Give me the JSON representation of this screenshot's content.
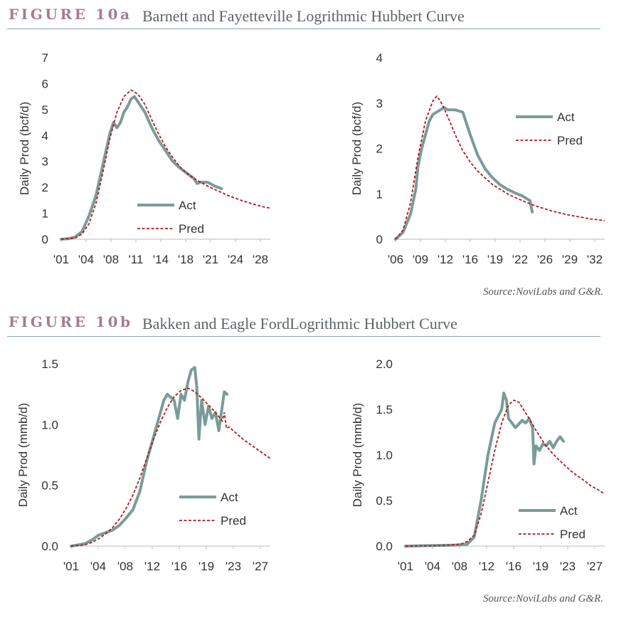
{
  "figures": [
    {
      "label": "FIGURE 10a",
      "title": "Barnett and Fayetteville Logrithmic Hubbert Curve",
      "source": "Source:NoviLabs and G&R."
    },
    {
      "label": "FIGURE 10b",
      "title": "Bakken and Eagle FordLogrithmic Hubbert Curve",
      "source": "Source:NoviLabs and G&R."
    }
  ],
  "colors": {
    "label": "#a37d93",
    "act": "#7a9c98",
    "pred": "#b11b1b",
    "rule": "#8aa6a8",
    "axis": "#bbbbbb",
    "text": "#333333"
  },
  "chart_data": [
    {
      "type": "line",
      "ylabel": "Daily Prod (bcf/d)",
      "ylim": [
        0,
        7
      ],
      "yticks": [
        "0",
        "1",
        "2",
        "3",
        "4",
        "5",
        "6",
        "7"
      ],
      "xlim": [
        2001,
        2031
      ],
      "xticks": [
        "'01",
        "'04",
        "'08",
        "'11",
        "'14",
        "'18",
        "'21",
        "'24",
        "'28"
      ],
      "legend_position": "center-right",
      "series": [
        {
          "name": "Act",
          "style": "solid",
          "points": [
            [
              2001,
              0
            ],
            [
              2002,
              0.02
            ],
            [
              2003,
              0.08
            ],
            [
              2004,
              0.3
            ],
            [
              2005,
              0.9
            ],
            [
              2006,
              1.7
            ],
            [
              2007,
              2.9
            ],
            [
              2008,
              4.1
            ],
            [
              2008.5,
              4.5
            ],
            [
              2009,
              4.3
            ],
            [
              2009.5,
              4.5
            ],
            [
              2010,
              4.9
            ],
            [
              2010.5,
              5.1
            ],
            [
              2011,
              5.4
            ],
            [
              2011.5,
              5.5
            ],
            [
              2012,
              5.3
            ],
            [
              2013,
              4.9
            ],
            [
              2014,
              4.3
            ],
            [
              2015,
              3.8
            ],
            [
              2016,
              3.4
            ],
            [
              2017,
              3.0
            ],
            [
              2018,
              2.75
            ],
            [
              2019,
              2.55
            ],
            [
              2020,
              2.35
            ],
            [
              2020.5,
              2.15
            ],
            [
              2021,
              2.2
            ],
            [
              2022,
              2.2
            ],
            [
              2023,
              2.05
            ],
            [
              2024,
              1.95
            ]
          ]
        },
        {
          "name": "Pred",
          "style": "dashed",
          "points": [
            [
              2001,
              0
            ],
            [
              2003,
              0.05
            ],
            [
              2004,
              0.2
            ],
            [
              2005,
              0.6
            ],
            [
              2006,
              1.4
            ],
            [
              2007,
              2.6
            ],
            [
              2008,
              3.9
            ],
            [
              2009,
              4.9
            ],
            [
              2010,
              5.5
            ],
            [
              2011,
              5.75
            ],
            [
              2012,
              5.6
            ],
            [
              2013,
              5.2
            ],
            [
              2014,
              4.6
            ],
            [
              2015,
              4.05
            ],
            [
              2016,
              3.55
            ],
            [
              2017,
              3.15
            ],
            [
              2018,
              2.8
            ],
            [
              2019,
              2.55
            ],
            [
              2020,
              2.35
            ],
            [
              2021,
              2.2
            ],
            [
              2022,
              2.05
            ],
            [
              2023,
              1.92
            ],
            [
              2024,
              1.8
            ],
            [
              2025,
              1.68
            ],
            [
              2026,
              1.58
            ],
            [
              2027,
              1.48
            ],
            [
              2028,
              1.4
            ],
            [
              2029,
              1.32
            ],
            [
              2030,
              1.25
            ],
            [
              2031,
              1.2
            ]
          ]
        }
      ]
    },
    {
      "type": "line",
      "ylabel": "Daily Prod (bcf/d)",
      "ylim": [
        0,
        4
      ],
      "yticks": [
        "0",
        "1",
        "2",
        "3",
        "4"
      ],
      "xlim": [
        2006,
        2034
      ],
      "xticks": [
        "'06",
        "'09",
        "'12",
        "'16",
        "'19",
        "'22",
        "'26",
        "'29",
        "'32"
      ],
      "legend_position": "top-right",
      "series": [
        {
          "name": "Act",
          "style": "solid",
          "points": [
            [
              2006,
              0
            ],
            [
              2007,
              0.15
            ],
            [
              2008,
              0.55
            ],
            [
              2008.7,
              1.1
            ],
            [
              2009,
              1.6
            ],
            [
              2009.5,
              2.0
            ],
            [
              2010,
              2.3
            ],
            [
              2010.5,
              2.6
            ],
            [
              2011,
              2.75
            ],
            [
              2012,
              2.85
            ],
            [
              2012.5,
              2.9
            ],
            [
              2013,
              2.85
            ],
            [
              2014,
              2.85
            ],
            [
              2015,
              2.8
            ],
            [
              2016,
              2.3
            ],
            [
              2017,
              1.85
            ],
            [
              2018,
              1.55
            ],
            [
              2019,
              1.35
            ],
            [
              2020,
              1.2
            ],
            [
              2021,
              1.1
            ],
            [
              2022,
              1.02
            ],
            [
              2023,
              0.95
            ],
            [
              2024,
              0.85
            ],
            [
              2024.3,
              0.6
            ]
          ]
        },
        {
          "name": "Pred",
          "style": "dashed",
          "points": [
            [
              2006,
              0
            ],
            [
              2007,
              0.2
            ],
            [
              2008,
              0.8
            ],
            [
              2009,
              1.8
            ],
            [
              2010,
              2.6
            ],
            [
              2011,
              3.05
            ],
            [
              2011.5,
              3.15
            ],
            [
              2012,
              3.05
            ],
            [
              2013,
              2.7
            ],
            [
              2014,
              2.3
            ],
            [
              2015,
              1.95
            ],
            [
              2016,
              1.7
            ],
            [
              2017,
              1.5
            ],
            [
              2018,
              1.35
            ],
            [
              2019,
              1.2
            ],
            [
              2020,
              1.1
            ],
            [
              2021,
              1.0
            ],
            [
              2022,
              0.92
            ],
            [
              2023,
              0.85
            ],
            [
              2024,
              0.78
            ],
            [
              2025,
              0.72
            ],
            [
              2026,
              0.67
            ],
            [
              2027,
              0.62
            ],
            [
              2028,
              0.58
            ],
            [
              2029,
              0.54
            ],
            [
              2030,
              0.51
            ],
            [
              2031,
              0.48
            ],
            [
              2032,
              0.45
            ],
            [
              2033,
              0.43
            ],
            [
              2034,
              0.41
            ]
          ]
        }
      ]
    },
    {
      "type": "line",
      "ylabel": "Daily Prod (mmb/d)",
      "ylim": [
        0,
        1.5
      ],
      "yticks": [
        "0.0",
        "0.5",
        "1.0",
        "1.5"
      ],
      "xlim": [
        2001,
        2030
      ],
      "xticks": [
        "'01",
        "'04",
        "'08",
        "'12",
        "'16",
        "'19",
        "'23",
        "'27"
      ],
      "legend_position": "center-right",
      "series": [
        {
          "name": "Act",
          "style": "solid",
          "points": [
            [
              2001,
              0
            ],
            [
              2002,
              0.01
            ],
            [
              2003,
              0.02
            ],
            [
              2004,
              0.05
            ],
            [
              2005,
              0.09
            ],
            [
              2006,
              0.11
            ],
            [
              2007,
              0.13
            ],
            [
              2008,
              0.17
            ],
            [
              2009,
              0.23
            ],
            [
              2010,
              0.3
            ],
            [
              2011,
              0.45
            ],
            [
              2012,
              0.7
            ],
            [
              2013,
              0.9
            ],
            [
              2014,
              1.1
            ],
            [
              2014.5,
              1.2
            ],
            [
              2015,
              1.25
            ],
            [
              2016,
              1.2
            ],
            [
              2016.5,
              1.05
            ],
            [
              2017,
              1.25
            ],
            [
              2017.5,
              1.2
            ],
            [
              2018,
              1.35
            ],
            [
              2018.5,
              1.45
            ],
            [
              2019,
              1.47
            ],
            [
              2019.3,
              1.3
            ],
            [
              2019.6,
              0.88
            ],
            [
              2020,
              1.2
            ],
            [
              2020.5,
              1.0
            ],
            [
              2021,
              1.15
            ],
            [
              2021.5,
              1.05
            ],
            [
              2022,
              1.1
            ],
            [
              2022.5,
              0.95
            ],
            [
              2023,
              1.15
            ],
            [
              2023.3,
              1.27
            ],
            [
              2023.7,
              1.25
            ]
          ]
        },
        {
          "name": "Pred",
          "style": "dashed",
          "points": [
            [
              2001,
              0
            ],
            [
              2003,
              0.01
            ],
            [
              2004,
              0.03
            ],
            [
              2005,
              0.06
            ],
            [
              2006,
              0.1
            ],
            [
              2007,
              0.15
            ],
            [
              2008,
              0.22
            ],
            [
              2009,
              0.31
            ],
            [
              2010,
              0.42
            ],
            [
              2011,
              0.56
            ],
            [
              2012,
              0.72
            ],
            [
              2013,
              0.88
            ],
            [
              2014,
              1.02
            ],
            [
              2015,
              1.14
            ],
            [
              2016,
              1.23
            ],
            [
              2017,
              1.28
            ],
            [
              2018,
              1.3
            ],
            [
              2019,
              1.27
            ],
            [
              2020,
              1.22
            ],
            [
              2021,
              1.16
            ],
            [
              2022,
              1.1
            ],
            [
              2023,
              1.03
            ],
            [
              2023.3,
              1.1
            ],
            [
              2023.6,
              0.97
            ],
            [
              2024,
              0.98
            ],
            [
              2025,
              0.93
            ],
            [
              2026,
              0.88
            ],
            [
              2027,
              0.84
            ],
            [
              2028,
              0.8
            ],
            [
              2029,
              0.76
            ],
            [
              2030,
              0.72
            ]
          ]
        }
      ]
    },
    {
      "type": "line",
      "ylabel": "Daily Prod (mmb/d)",
      "ylim": [
        0,
        2.0
      ],
      "yticks": [
        "0.0",
        "0.5",
        "1.0",
        "1.5",
        "2.0"
      ],
      "xlim": [
        2001,
        2030
      ],
      "xticks": [
        "'01",
        "'04",
        "'08",
        "'12",
        "'16",
        "'19",
        "'23",
        "'27"
      ],
      "legend_position": "bottom-right",
      "series": [
        {
          "name": "Act",
          "style": "solid",
          "points": [
            [
              2001,
              0
            ],
            [
              2004,
              0.005
            ],
            [
              2008,
              0.01
            ],
            [
              2010,
              0.02
            ],
            [
              2011,
              0.1
            ],
            [
              2012,
              0.5
            ],
            [
              2013,
              1.0
            ],
            [
              2014,
              1.35
            ],
            [
              2015,
              1.5
            ],
            [
              2015.3,
              1.68
            ],
            [
              2015.7,
              1.6
            ],
            [
              2016,
              1.4
            ],
            [
              2017,
              1.3
            ],
            [
              2018,
              1.38
            ],
            [
              2018.5,
              1.35
            ],
            [
              2019,
              1.4
            ],
            [
              2019.5,
              1.3
            ],
            [
              2019.7,
              0.9
            ],
            [
              2020,
              1.1
            ],
            [
              2020.5,
              1.05
            ],
            [
              2021,
              1.12
            ],
            [
              2021.5,
              1.1
            ],
            [
              2022,
              1.15
            ],
            [
              2022.5,
              1.08
            ],
            [
              2023,
              1.15
            ],
            [
              2023.5,
              1.2
            ],
            [
              2024,
              1.15
            ]
          ]
        },
        {
          "name": "Pred",
          "style": "dashed",
          "points": [
            [
              2001,
              0
            ],
            [
              2006,
              0.005
            ],
            [
              2009,
              0.02
            ],
            [
              2010,
              0.05
            ],
            [
              2011,
              0.12
            ],
            [
              2012,
              0.35
            ],
            [
              2013,
              0.7
            ],
            [
              2014,
              1.05
            ],
            [
              2015,
              1.35
            ],
            [
              2016,
              1.55
            ],
            [
              2016.8,
              1.6
            ],
            [
              2017.5,
              1.58
            ],
            [
              2018,
              1.52
            ],
            [
              2019,
              1.4
            ],
            [
              2020,
              1.27
            ],
            [
              2021,
              1.15
            ],
            [
              2022,
              1.05
            ],
            [
              2023,
              0.97
            ],
            [
              2024,
              0.9
            ],
            [
              2025,
              0.83
            ],
            [
              2026,
              0.77
            ],
            [
              2027,
              0.72
            ],
            [
              2028,
              0.66
            ],
            [
              2029,
              0.62
            ],
            [
              2030,
              0.57
            ]
          ]
        }
      ]
    }
  ]
}
